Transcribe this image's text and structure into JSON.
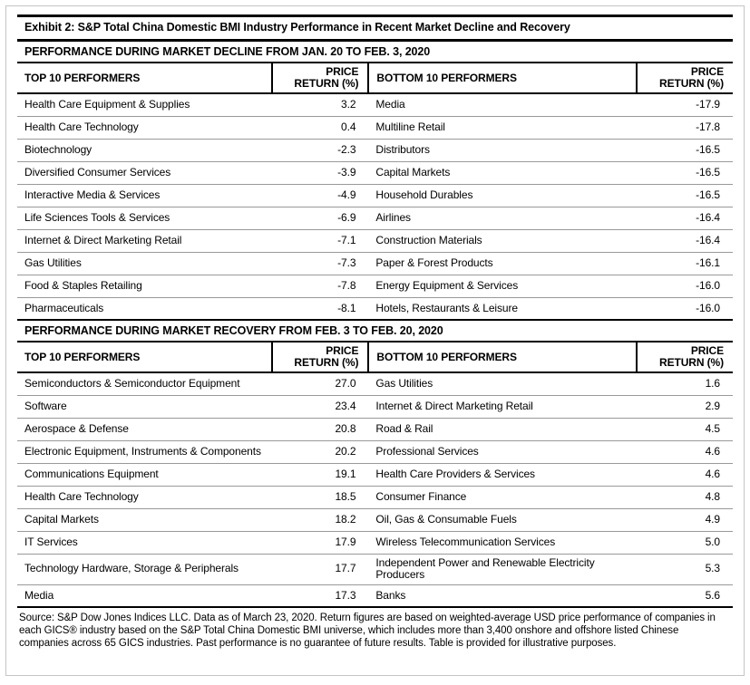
{
  "exhibit_title": "Exhibit 2: S&P Total China Domestic BMI Industry Performance in Recent Market Decline and Recovery",
  "sections": [
    {
      "header": "PERFORMANCE DURING MARKET DECLINE FROM JAN. 20 TO FEB. 3, 2020",
      "columns": {
        "top": "TOP 10 PERFORMERS",
        "top_return": "PRICE RETURN (%)",
        "bottom": "BOTTOM 10 PERFORMERS",
        "bottom_return": "PRICE RETURN (%)"
      },
      "rows": [
        {
          "top_name": "Health Care Equipment & Supplies",
          "top_return": "3.2",
          "bottom_name": "Media",
          "bottom_return": "-17.9"
        },
        {
          "top_name": "Health Care Technology",
          "top_return": "0.4",
          "bottom_name": "Multiline Retail",
          "bottom_return": "-17.8"
        },
        {
          "top_name": "Biotechnology",
          "top_return": "-2.3",
          "bottom_name": "Distributors",
          "bottom_return": "-16.5"
        },
        {
          "top_name": "Diversified Consumer Services",
          "top_return": "-3.9",
          "bottom_name": "Capital Markets",
          "bottom_return": "-16.5"
        },
        {
          "top_name": "Interactive Media & Services",
          "top_return": "-4.9",
          "bottom_name": "Household Durables",
          "bottom_return": "-16.5"
        },
        {
          "top_name": "Life Sciences Tools & Services",
          "top_return": "-6.9",
          "bottom_name": "Airlines",
          "bottom_return": "-16.4"
        },
        {
          "top_name": "Internet & Direct Marketing Retail",
          "top_return": "-7.1",
          "bottom_name": "Construction Materials",
          "bottom_return": "-16.4"
        },
        {
          "top_name": "Gas Utilities",
          "top_return": "-7.3",
          "bottom_name": "Paper & Forest Products",
          "bottom_return": "-16.1"
        },
        {
          "top_name": "Food & Staples Retailing",
          "top_return": "-7.8",
          "bottom_name": "Energy Equipment & Services",
          "bottom_return": "-16.0"
        },
        {
          "top_name": "Pharmaceuticals",
          "top_return": "-8.1",
          "bottom_name": "Hotels, Restaurants & Leisure",
          "bottom_return": "-16.0"
        }
      ]
    },
    {
      "header": "PERFORMANCE DURING MARKET RECOVERY FROM FEB. 3 TO FEB. 20, 2020",
      "columns": {
        "top": "TOP 10 PERFORMERS",
        "top_return": "PRICE RETURN (%)",
        "bottom": "BOTTOM 10 PERFORMERS",
        "bottom_return": "PRICE RETURN (%)"
      },
      "rows": [
        {
          "top_name": "Semiconductors & Semiconductor Equipment",
          "top_return": "27.0",
          "bottom_name": "Gas Utilities",
          "bottom_return": "1.6"
        },
        {
          "top_name": "Software",
          "top_return": "23.4",
          "bottom_name": "Internet & Direct Marketing Retail",
          "bottom_return": "2.9"
        },
        {
          "top_name": "Aerospace & Defense",
          "top_return": "20.8",
          "bottom_name": "Road & Rail",
          "bottom_return": "4.5"
        },
        {
          "top_name": "Electronic Equipment, Instruments & Components",
          "top_return": "20.2",
          "bottom_name": "Professional Services",
          "bottom_return": "4.6"
        },
        {
          "top_name": "Communications Equipment",
          "top_return": "19.1",
          "bottom_name": "Health Care Providers & Services",
          "bottom_return": "4.6"
        },
        {
          "top_name": "Health Care Technology",
          "top_return": "18.5",
          "bottom_name": "Consumer Finance",
          "bottom_return": "4.8"
        },
        {
          "top_name": "Capital Markets",
          "top_return": "18.2",
          "bottom_name": "Oil, Gas & Consumable Fuels",
          "bottom_return": "4.9"
        },
        {
          "top_name": "IT Services",
          "top_return": "17.9",
          "bottom_name": "Wireless Telecommunication Services",
          "bottom_return": "5.0"
        },
        {
          "top_name": "Technology Hardware, Storage & Peripherals",
          "top_return": "17.7",
          "bottom_name": "Independent Power and Renewable Electricity Producers",
          "bottom_return": "5.3"
        },
        {
          "top_name": "Media",
          "top_return": "17.3",
          "bottom_name": "Banks",
          "bottom_return": "5.6"
        }
      ]
    }
  ],
  "footnote": "Source: S&P Dow Jones Indices LLC. Data as of March 23, 2020. Return figures are based on weighted-average USD price performance of companies in each GICS® industry based on the S&P Total China Domestic BMI universe, which includes more than 3,400 onshore and offshore listed Chinese companies across 65 GICS industries. Past performance is no guarantee of future results. Table is provided for illustrative purposes."
}
